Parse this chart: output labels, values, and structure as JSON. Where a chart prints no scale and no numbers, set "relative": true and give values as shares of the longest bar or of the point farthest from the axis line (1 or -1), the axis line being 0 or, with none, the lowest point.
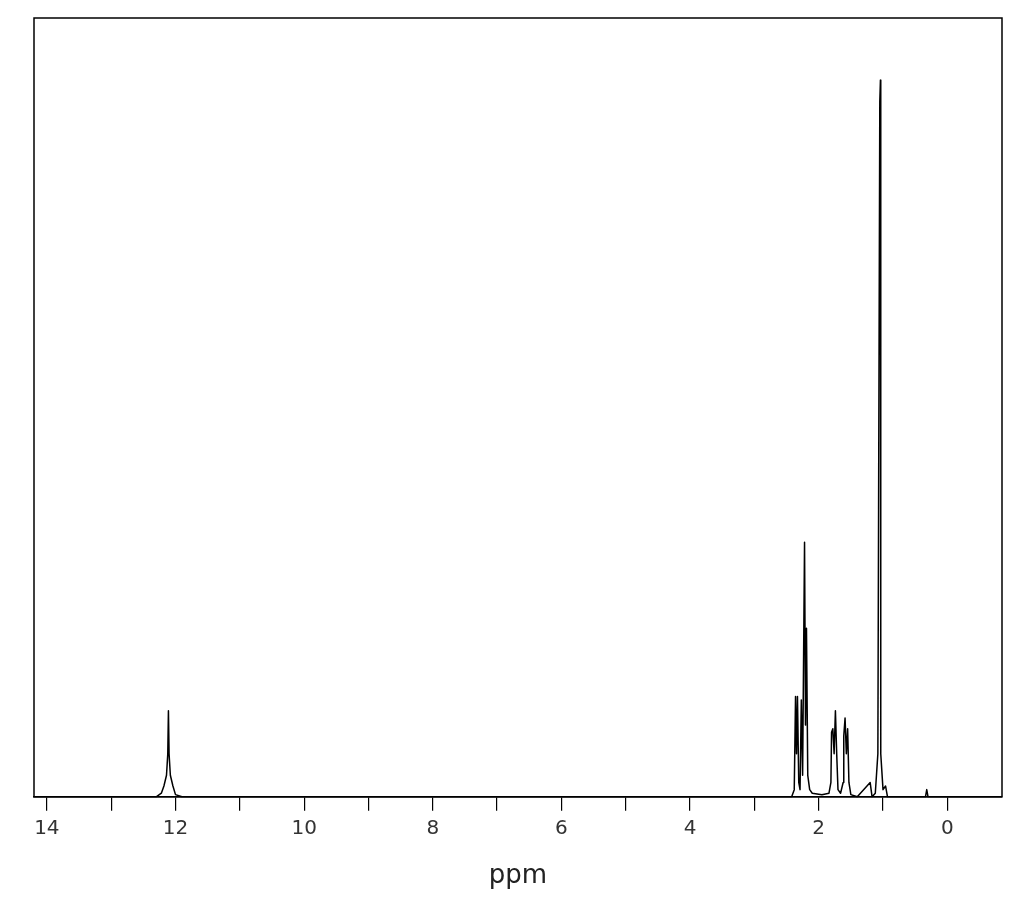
{
  "chart_data": {
    "type": "line",
    "xlabel": "ppm",
    "relative": true,
    "color": "#000000",
    "xlim": [
      14.2,
      -0.85
    ],
    "xticks": [
      14,
      {
        "value": 13,
        "label": null
      },
      12,
      {
        "value": 11,
        "label": null
      },
      10,
      {
        "value": 9,
        "label": null
      },
      8,
      {
        "value": 7,
        "label": null
      },
      6,
      {
        "value": 5,
        "label": null
      },
      4,
      {
        "value": 3,
        "label": null
      },
      2,
      {
        "value": 1,
        "label": null
      },
      0
    ],
    "x": [
      14.2,
      12.3,
      12.22,
      12.18,
      12.14,
      12.12,
      12.11,
      12.1,
      12.08,
      12.04,
      12.0,
      11.9,
      2.42,
      2.38,
      2.36,
      2.345,
      2.33,
      2.31,
      2.29,
      2.27,
      2.25,
      2.22,
      2.205,
      2.19,
      2.17,
      2.14,
      2.1,
      1.95,
      1.84,
      1.81,
      1.8,
      1.78,
      1.76,
      1.74,
      1.72,
      1.7,
      1.66,
      1.62,
      1.61,
      1.59,
      1.57,
      1.55,
      1.53,
      1.5,
      1.4,
      1.2,
      1.17,
      1.12,
      1.08,
      1.05,
      1.04,
      1.035,
      1.0,
      0.96,
      0.93,
      0.34,
      0.32,
      0.3,
      -0.85
    ],
    "values": [
      0,
      0,
      0.005,
      0.015,
      0.03,
      0.06,
      0.12,
      0.06,
      0.03,
      0.015,
      0.003,
      0,
      0,
      0.01,
      0.14,
      0.06,
      0.14,
      0.02,
      0.01,
      0.135,
      0.03,
      0.355,
      0.1,
      0.235,
      0.03,
      0.01,
      0.005,
      0.003,
      0.005,
      0.02,
      0.09,
      0.095,
      0.06,
      0.12,
      0.06,
      0.01,
      0.005,
      0.02,
      0.085,
      0.11,
      0.06,
      0.095,
      0.02,
      0.003,
      0,
      0.02,
      0,
      0.005,
      0.06,
      0.97,
      1.0,
      0.06,
      0.01,
      0.015,
      0,
      0,
      0.01,
      0,
      0
    ],
    "grid": false,
    "legend": false,
    "marker": "none",
    "line_style": "solid"
  }
}
